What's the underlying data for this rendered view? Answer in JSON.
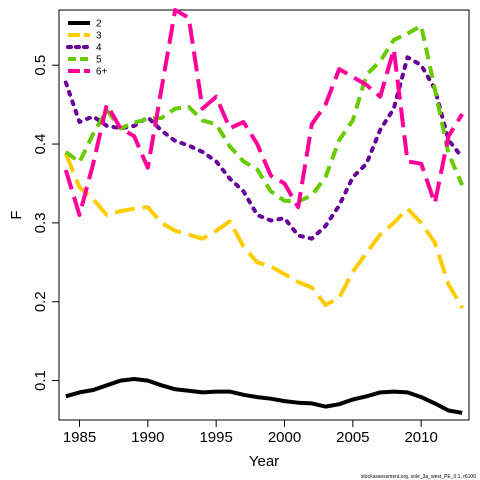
{
  "chart_data": {
    "type": "line",
    "xlabel": "Year",
    "ylabel": "F",
    "xlim": [
      1983.5,
      2013.5
    ],
    "ylim": [
      0.05,
      0.57
    ],
    "x_ticks": [
      1985,
      1990,
      1995,
      2000,
      2005,
      2010
    ],
    "y_ticks": [
      0.1,
      0.2,
      0.3,
      0.4,
      0.5
    ],
    "legend_position": "top-left",
    "footnote": "stockassessment.org, sole_3a_west_PE_0.1, r6106",
    "x": [
      1984,
      1985,
      1986,
      1987,
      1988,
      1989,
      1990,
      1991,
      1992,
      1993,
      1994,
      1995,
      1996,
      1997,
      1998,
      1999,
      2000,
      2001,
      2002,
      2003,
      2004,
      2005,
      2006,
      2007,
      2008,
      2009,
      2010,
      2011,
      2012,
      2013
    ],
    "series": [
      {
        "name": "2",
        "color": "#000000",
        "dash": "solid",
        "values": [
          0.08,
          0.085,
          0.088,
          0.094,
          0.1,
          0.102,
          0.1,
          0.094,
          0.089,
          0.087,
          0.085,
          0.086,
          0.086,
          0.082,
          0.079,
          0.077,
          0.074,
          0.072,
          0.071,
          0.067,
          0.07,
          0.076,
          0.08,
          0.085,
          0.086,
          0.085,
          0.079,
          0.071,
          0.062,
          0.059
        ]
      },
      {
        "name": "3",
        "color": "#FFCC00",
        "dash": "longdash",
        "values": [
          0.388,
          0.345,
          0.33,
          0.31,
          0.315,
          0.318,
          0.32,
          0.3,
          0.29,
          0.285,
          0.28,
          0.29,
          0.302,
          0.27,
          0.25,
          0.245,
          0.235,
          0.225,
          0.218,
          0.196,
          0.205,
          0.238,
          0.262,
          0.285,
          0.3,
          0.318,
          0.3,
          0.275,
          0.222,
          0.192
        ]
      },
      {
        "name": "4",
        "color": "#660099",
        "dash": "dotted",
        "values": [
          0.478,
          0.428,
          0.435,
          0.423,
          0.42,
          0.423,
          0.434,
          0.417,
          0.404,
          0.398,
          0.39,
          0.378,
          0.356,
          0.34,
          0.31,
          0.303,
          0.306,
          0.284,
          0.28,
          0.296,
          0.322,
          0.358,
          0.375,
          0.418,
          0.445,
          0.51,
          0.5,
          0.47,
          0.405,
          0.383
        ]
      },
      {
        "name": "5",
        "color": "#66CC00",
        "dash": "dashed",
        "values": [
          0.39,
          0.377,
          0.413,
          0.443,
          0.42,
          0.427,
          0.432,
          0.433,
          0.445,
          0.447,
          0.43,
          0.425,
          0.397,
          0.378,
          0.368,
          0.34,
          0.328,
          0.327,
          0.335,
          0.358,
          0.405,
          0.43,
          0.488,
          0.505,
          0.532,
          0.54,
          0.55,
          0.47,
          0.388,
          0.348
        ]
      },
      {
        "name": "6+",
        "color": "#FF0099",
        "dash": "longdash",
        "values": [
          0.367,
          0.31,
          0.375,
          0.45,
          0.42,
          0.41,
          0.37,
          0.47,
          0.57,
          0.56,
          0.445,
          0.46,
          0.42,
          0.428,
          0.4,
          0.36,
          0.35,
          0.32,
          0.425,
          0.45,
          0.495,
          0.485,
          0.475,
          0.46,
          0.52,
          0.378,
          0.375,
          0.325,
          0.41,
          0.438
        ]
      }
    ]
  }
}
